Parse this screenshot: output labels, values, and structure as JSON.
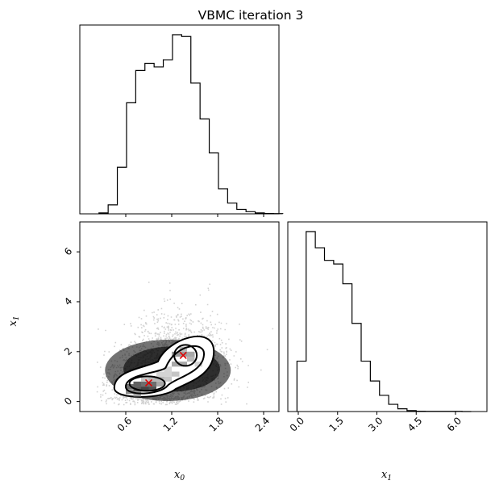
{
  "chart_data": {
    "title": "VBMC iteration 3",
    "type": "corner",
    "panels": [
      {
        "type": "histogram",
        "variable": "x0",
        "bins": [
          0.25,
          0.37,
          0.49,
          0.61,
          0.73,
          0.85,
          0.97,
          1.09,
          1.21,
          1.33,
          1.45,
          1.57,
          1.69,
          1.81,
          1.93,
          2.05,
          2.17,
          2.29,
          2.41,
          2.53,
          2.65
        ],
        "heights": [
          0.005,
          0.05,
          0.26,
          0.62,
          0.8,
          0.84,
          0.82,
          0.86,
          1.0,
          0.99,
          0.73,
          0.53,
          0.34,
          0.14,
          0.06,
          0.025,
          0.012,
          0.005,
          0.002,
          0.001
        ],
        "xlim": [
          0.0,
          2.6
        ],
        "ticks": [
          "0.6",
          "1.2",
          "1.8",
          "2.4"
        ]
      },
      {
        "type": "scatter-2d-hist",
        "xvar": "x0",
        "yvar": "x1",
        "xlim": [
          0.0,
          2.6
        ],
        "ylim": [
          -0.4,
          7.2
        ],
        "xticks": [
          "0.6",
          "1.2",
          "1.8",
          "2.4"
        ],
        "yticks": [
          "0",
          "2",
          "4",
          "6"
        ],
        "modes": [
          {
            "x": 0.9,
            "y": 0.75
          },
          {
            "x": 1.35,
            "y": 1.85
          }
        ]
      },
      {
        "type": "histogram",
        "variable": "x1",
        "bins": [
          -0.05,
          0.3,
          0.65,
          1.0,
          1.35,
          1.7,
          2.05,
          2.4,
          2.75,
          3.1,
          3.45,
          3.8,
          4.15,
          4.5,
          4.85,
          5.2,
          5.55,
          5.9,
          6.25,
          6.6
        ],
        "heights": [
          0.28,
          1.0,
          0.91,
          0.84,
          0.82,
          0.71,
          0.49,
          0.28,
          0.17,
          0.09,
          0.04,
          0.015,
          0.005,
          0.002,
          0.001,
          0.001,
          0.001,
          0.001,
          0.0
        ],
        "xlim": [
          -0.4,
          7.2
        ],
        "ticks": [
          "0.0",
          "1.5",
          "3.0",
          "4.5",
          "6.0"
        ]
      }
    ],
    "xlabel_0": "x",
    "xlabel_0_sub": "0",
    "xlabel_1": "x",
    "xlabel_1_sub": "1",
    "ylabel": "x",
    "ylabel_sub": "1"
  }
}
